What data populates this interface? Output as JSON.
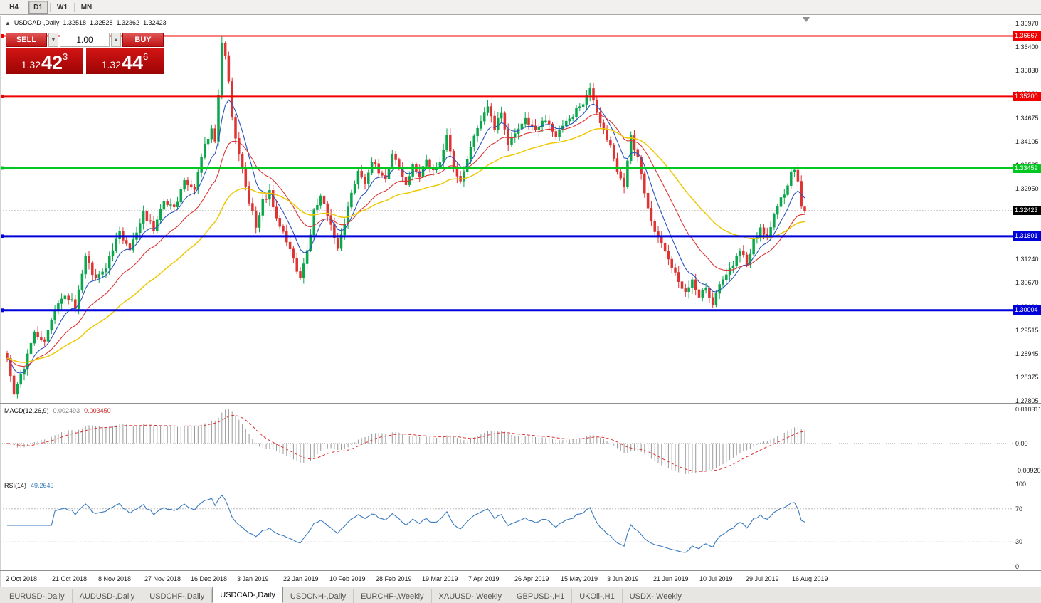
{
  "icons": {
    "collapse": "▲",
    "volume_down": "▼",
    "volume_up": "▲"
  },
  "toolbar": {
    "timeframes": [
      {
        "label": "H4",
        "active": false
      },
      {
        "label": "D1",
        "active": true
      },
      {
        "label": "W1",
        "active": false
      },
      {
        "label": "MN",
        "active": false
      }
    ]
  },
  "one_click": {
    "sell_label": "SELL",
    "buy_label": "BUY",
    "volume": "1.00",
    "sell_price": {
      "prefix": "1.32",
      "main": "42",
      "sup": "3"
    },
    "buy_price": {
      "prefix": "1.32",
      "main": "44",
      "sup": "6"
    }
  },
  "colors": {
    "bull": "#0aa64b",
    "bear": "#dd3333",
    "macd_hist": "#999999",
    "macd_signal": "#dd3333",
    "rsi_line": "#3a7abf",
    "level_dashed": "#bbbbbb",
    "current_line": "#b4b4b4"
  },
  "tabs": [
    {
      "label": "EURUSD-,Daily",
      "active": false
    },
    {
      "label": "AUDUSD-,Daily",
      "active": false
    },
    {
      "label": "USDCHF-,Daily",
      "active": false
    },
    {
      "label": "USDCAD-,Daily",
      "active": true
    },
    {
      "label": "USDCNH-,Daily",
      "active": false
    },
    {
      "label": "EURCHF-,Weekly",
      "active": false
    },
    {
      "label": "XAUUSD-,Weekly",
      "active": false
    },
    {
      "label": "GBPUSD-,H1",
      "active": false
    },
    {
      "label": "UKOil-,H1",
      "active": false
    },
    {
      "label": "USDX-,Weekly",
      "active": false
    }
  ],
  "chart_data": {
    "type": "candlestick",
    "symbol": "USDCAD",
    "timeframe": "Daily",
    "title": "USDCAD-,Daily",
    "ohlc_header": {
      "open": "1.32518",
      "high": "1.32528",
      "low": "1.32362",
      "close": "1.32423"
    },
    "last_bar": {
      "open": 1.32518,
      "high": 1.32528,
      "low": 1.32362,
      "close": 1.32423
    },
    "y_axis": {
      "top": 1.3697,
      "bottom": 1.27805,
      "labels": [
        "1.36970",
        "1.36400",
        "1.35830",
        "1.35260",
        "1.34675",
        "1.34105",
        "1.33535",
        "1.32950",
        "1.32380",
        "1.31810",
        "1.31240",
        "1.30670",
        "1.30100",
        "1.29515",
        "1.28945",
        "1.28375",
        "1.27805"
      ]
    },
    "x_labels": [
      "2 Oct 2018",
      "21 Oct 2018",
      "8 Nov 2018",
      "27 Nov 2018",
      "16 Dec 2018",
      "3 Jan 2019",
      "22 Jan 2019",
      "10 Feb 2019",
      "28 Feb 2019",
      "19 Mar 2019",
      "7 Apr 2019",
      "26 Apr 2019",
      "15 May 2019",
      "3 Jun 2019",
      "21 Jun 2019",
      "10 Jul 2019",
      "29 Jul 2019",
      "16 Aug 2019"
    ],
    "bar_count": 235,
    "last_close": 1.32423,
    "waypoints": [
      [
        0,
        1.288
      ],
      [
        2,
        1.2795
      ],
      [
        5,
        1.286
      ],
      [
        8,
        1.295
      ],
      [
        11,
        1.2925
      ],
      [
        14,
        1.2995
      ],
      [
        17,
        1.304
      ],
      [
        20,
        1.301
      ],
      [
        23,
        1.313
      ],
      [
        26,
        1.3075
      ],
      [
        29,
        1.3105
      ],
      [
        33,
        1.319
      ],
      [
        36,
        1.3145
      ],
      [
        40,
        1.324
      ],
      [
        43,
        1.3195
      ],
      [
        46,
        1.327
      ],
      [
        49,
        1.3245
      ],
      [
        52,
        1.331
      ],
      [
        55,
        1.3295
      ],
      [
        58,
        1.34
      ],
      [
        60,
        1.3445
      ],
      [
        61,
        1.3415
      ],
      [
        62,
        1.352
      ],
      [
        63,
        1.3655
      ],
      [
        64,
        1.3625
      ],
      [
        65,
        1.3555
      ],
      [
        66,
        1.3465
      ],
      [
        68,
        1.3385
      ],
      [
        70,
        1.3295
      ],
      [
        73,
        1.3205
      ],
      [
        75,
        1.3265
      ],
      [
        77,
        1.3285
      ],
      [
        79,
        1.3225
      ],
      [
        82,
        1.317
      ],
      [
        84,
        1.3125
      ],
      [
        86,
        1.3078
      ],
      [
        88,
        1.314
      ],
      [
        90,
        1.324
      ],
      [
        92,
        1.3285
      ],
      [
        94,
        1.3235
      ],
      [
        97,
        1.3155
      ],
      [
        99,
        1.3205
      ],
      [
        101,
        1.3285
      ],
      [
        103,
        1.3335
      ],
      [
        105,
        1.3305
      ],
      [
        107,
        1.3365
      ],
      [
        109,
        1.3335
      ],
      [
        111,
        1.3315
      ],
      [
        113,
        1.3385
      ],
      [
        115,
        1.3345
      ],
      [
        117,
        1.3305
      ],
      [
        119,
        1.3355
      ],
      [
        121,
        1.3325
      ],
      [
        123,
        1.3365
      ],
      [
        125,
        1.3335
      ],
      [
        127,
        1.3365
      ],
      [
        129,
        1.3425
      ],
      [
        131,
        1.3345
      ],
      [
        133,
        1.3315
      ],
      [
        135,
        1.3365
      ],
      [
        137,
        1.3425
      ],
      [
        139,
        1.3465
      ],
      [
        141,
        1.3495
      ],
      [
        143,
        1.3445
      ],
      [
        145,
        1.3475
      ],
      [
        147,
        1.3405
      ],
      [
        149,
        1.3435
      ],
      [
        152,
        1.3465
      ],
      [
        155,
        1.3435
      ],
      [
        158,
        1.3465
      ],
      [
        161,
        1.3425
      ],
      [
        164,
        1.3455
      ],
      [
        167,
        1.3485
      ],
      [
        169,
        1.3505
      ],
      [
        171,
        1.3535
      ],
      [
        173,
        1.3475
      ],
      [
        175,
        1.3435
      ],
      [
        177,
        1.3395
      ],
      [
        179,
        1.334
      ],
      [
        181,
        1.33
      ],
      [
        183,
        1.342
      ],
      [
        185,
        1.337
      ],
      [
        187,
        1.329
      ],
      [
        189,
        1.322
      ],
      [
        191,
        1.3175
      ],
      [
        193,
        1.3145
      ],
      [
        195,
        1.3105
      ],
      [
        197,
        1.307
      ],
      [
        199,
        1.3042
      ],
      [
        201,
        1.3068
      ],
      [
        203,
        1.3032
      ],
      [
        205,
        1.3058
      ],
      [
        207,
        1.3018
      ],
      [
        209,
        1.3062
      ],
      [
        211,
        1.3092
      ],
      [
        213,
        1.3112
      ],
      [
        215,
        1.314
      ],
      [
        217,
        1.3118
      ],
      [
        219,
        1.3168
      ],
      [
        221,
        1.3198
      ],
      [
        223,
        1.3178
      ],
      [
        225,
        1.3228
      ],
      [
        227,
        1.3268
      ],
      [
        229,
        1.3302
      ],
      [
        230,
        1.3332
      ],
      [
        231,
        1.3342
      ],
      [
        232,
        1.3308
      ],
      [
        233,
        1.3252
      ],
      [
        234,
        1.32423
      ]
    ],
    "moving_averages": [
      {
        "period": 8,
        "color": "#2a52be"
      },
      {
        "period": 20,
        "color": "#dd3333"
      },
      {
        "period": 45,
        "color": "#eec800"
      }
    ],
    "hlines": [
      {
        "value": 1.36667,
        "label": "1.36667",
        "color": "#f00000",
        "width": 2
      },
      {
        "value": 1.352,
        "label": "1.35200",
        "color": "#f00000",
        "width": 2
      },
      {
        "value": 1.33459,
        "label": "1.33459",
        "color": "#00c820",
        "width": 3
      },
      {
        "value": 1.31801,
        "label": "1.31801",
        "color": "#0000d8",
        "width": 3
      },
      {
        "value": 1.30004,
        "label": "1.30004",
        "color": "#0000d8",
        "width": 3
      }
    ],
    "current_price": {
      "value": 1.32423,
      "label": "1.32423",
      "color": "#000000"
    },
    "indicators": {
      "macd": {
        "name": "MACD(12,26,9)",
        "params": [
          12,
          26,
          9
        ],
        "value": "0.002493",
        "signal": "0.003450",
        "axis": {
          "top": "0.010311",
          "zero": "0.00",
          "bottom": "-0.009203"
        }
      },
      "rsi": {
        "name": "RSI(14)",
        "period": 14,
        "value": "49.2649",
        "levels": [
          70,
          30
        ],
        "axis": [
          "100",
          "70",
          "30",
          "0"
        ]
      }
    }
  }
}
